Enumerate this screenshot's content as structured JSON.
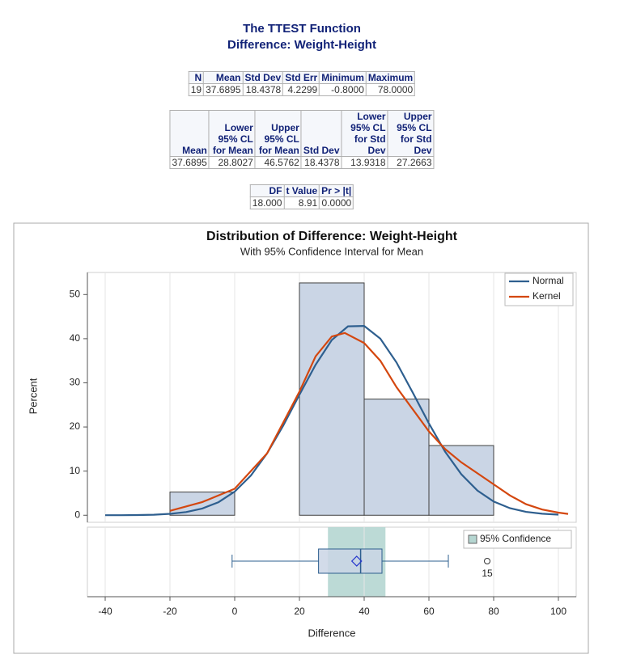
{
  "header": {
    "title": "The TTEST Function",
    "subtitle": "Difference: Weight-Height"
  },
  "tables": [
    {
      "columns": [
        "N",
        "Mean",
        "Std Dev",
        "Std Err",
        "Minimum",
        "Maximum"
      ],
      "rows": [
        [
          "19",
          "37.6895",
          "18.4378",
          "4.2299",
          "-0.8000",
          "78.0000"
        ]
      ]
    },
    {
      "columns": [
        "Mean",
        "Lower 95% CL for Mean",
        "Upper 95% CL for Mean",
        "Std Dev",
        "Lower 95% CL for Std Dev",
        "Upper 95% CL for Std Dev"
      ],
      "rows": [
        [
          "37.6895",
          "28.8027",
          "46.5762",
          "18.4378",
          "13.9318",
          "27.2663"
        ]
      ]
    },
    {
      "columns": [
        "DF",
        "t Value",
        "Pr > |t|"
      ],
      "rows": [
        [
          "18.000",
          "8.91",
          "0.0000"
        ]
      ]
    }
  ],
  "chart_data": {
    "type": "histogram",
    "title": "Distribution of Difference: Weight-Height",
    "subtitle": "With 95% Confidence Interval for Mean",
    "x_label": "Difference",
    "y_label": "Percent",
    "bins": [
      -20,
      0,
      20,
      40,
      60,
      80
    ],
    "values": [
      5.26,
      0,
      52.63,
      26.32,
      15.79
    ],
    "color": "#cad5e5",
    "xlim": [
      -45.5,
      105.5
    ],
    "xticks": [
      -40,
      -20,
      0,
      20,
      40,
      60,
      80,
      100
    ],
    "ylim": [
      -1.6,
      55
    ],
    "yticks": [
      0,
      10,
      20,
      30,
      40,
      50
    ],
    "xgrid": true,
    "legend": "top-right",
    "series": [
      {
        "name": "Normal",
        "color": "#2e5f8f",
        "x": [
          -40,
          -35,
          -30,
          -25,
          -20,
          -15,
          -10,
          -5,
          0,
          5,
          10,
          15,
          20,
          25,
          30,
          35,
          40,
          45,
          50,
          55,
          60,
          65,
          70,
          75,
          80,
          85,
          90,
          95,
          100
        ],
        "values": [
          0.01,
          0.02,
          0.05,
          0.13,
          0.32,
          0.73,
          1.53,
          2.97,
          5.36,
          8.99,
          14.01,
          20.3,
          27.3,
          34.1,
          39.7,
          42.8,
          42.9,
          40.0,
          34.6,
          27.8,
          20.8,
          14.4,
          9.3,
          5.58,
          3.11,
          1.61,
          0.77,
          0.34,
          0.14
        ]
      },
      {
        "name": "Kernel",
        "color": "#d4470f",
        "x": [
          -20,
          -10,
          0,
          10,
          20,
          25,
          30,
          34,
          40,
          45,
          50,
          55,
          60,
          65,
          70,
          75,
          80,
          85,
          90,
          95,
          100,
          103
        ],
        "values": [
          1,
          3,
          6,
          14,
          28,
          36,
          40.5,
          41.3,
          39,
          35,
          29,
          24,
          19,
          15,
          12,
          9.5,
          7,
          4.5,
          2.5,
          1.3,
          0.6,
          0.3
        ]
      }
    ],
    "box": {
      "whisker_low": -0.8,
      "q1": 25.9,
      "median": 38.9,
      "q3": 45.5,
      "whisker_high": 66,
      "mean": 37.6895,
      "outliers": [
        78
      ],
      "outlier_labels": [
        "15"
      ],
      "color": "#cad5e5",
      "line_color": "#2e5f8f"
    },
    "ci": {
      "name": "95% Confidence",
      "lower": 28.8027,
      "upper": 46.5762,
      "color": "#b5d6d1"
    }
  }
}
